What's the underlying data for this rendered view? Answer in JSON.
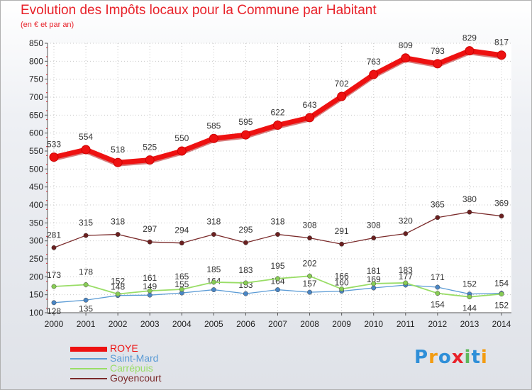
{
  "title": "Evolution des Impôts locaux pour la Commune par Habitant",
  "subtitle": "(en € et par an)",
  "brand": "Proxiti",
  "chart_data": {
    "type": "line",
    "title": "Evolution des Impôts locaux pour la Commune par Habitant",
    "subtitle": "(en € et par an)",
    "xlabel": "",
    "ylabel": "",
    "ylim": [
      100,
      850
    ],
    "yticks": [
      100,
      150,
      200,
      250,
      300,
      350,
      400,
      450,
      500,
      550,
      600,
      650,
      700,
      750,
      800,
      850
    ],
    "grid": true,
    "legend_position": "bottom-left",
    "x": [
      "2000",
      "2001",
      "2002",
      "2003",
      "2004",
      "2005",
      "2006",
      "2007",
      "2008",
      "2009",
      "2010",
      "2011",
      "2012",
      "2013",
      "2014"
    ],
    "series": [
      {
        "name": "ROYE",
        "color": "#ee1111",
        "values": [
          533,
          554,
          518,
          525,
          550,
          585,
          595,
          622,
          643,
          702,
          763,
          809,
          793,
          829,
          817
        ]
      },
      {
        "name": "Saint-Mard",
        "color": "#5b9bd5",
        "values": [
          128,
          135,
          148,
          149,
          155,
          164,
          153,
          164,
          157,
          160,
          169,
          177,
          171,
          152,
          154
        ]
      },
      {
        "name": "Carrépuis",
        "color": "#99dd66",
        "values": [
          173,
          178,
          152,
          161,
          165,
          185,
          183,
          195,
          202,
          166,
          181,
          183,
          154,
          144,
          152
        ]
      },
      {
        "name": "Goyencourt",
        "color": "#7a2a2a",
        "values": [
          281,
          315,
          318,
          297,
          294,
          318,
          295,
          318,
          308,
          291,
          308,
          320,
          365,
          380,
          369
        ]
      }
    ]
  }
}
